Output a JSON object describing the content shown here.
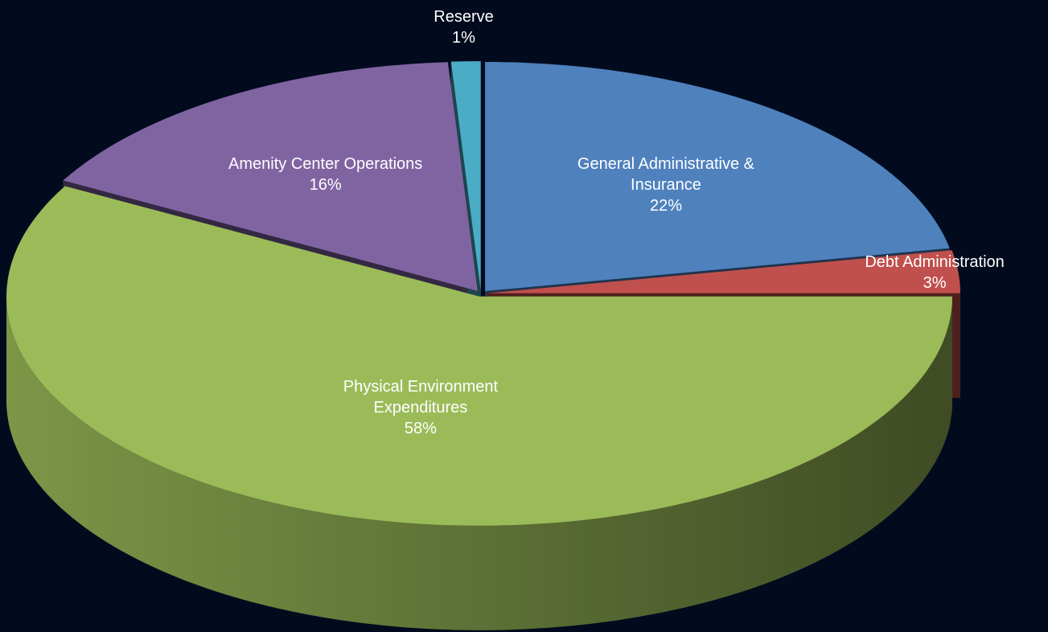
{
  "chart_data": {
    "type": "pie",
    "categories": [
      "General Administrative & Insurance",
      "Debt Administration",
      "Physical Environment Expenditures",
      "Amenity Center Operations",
      "Reserve"
    ],
    "values": [
      22,
      3,
      58,
      16,
      1
    ],
    "value_labels": [
      "22%",
      "3%",
      "58%",
      "16%",
      "1%"
    ],
    "colors": [
      "#4f81bd",
      "#c0504d",
      "#9bbb59",
      "#8064a2",
      "#4bacc6"
    ]
  }
}
